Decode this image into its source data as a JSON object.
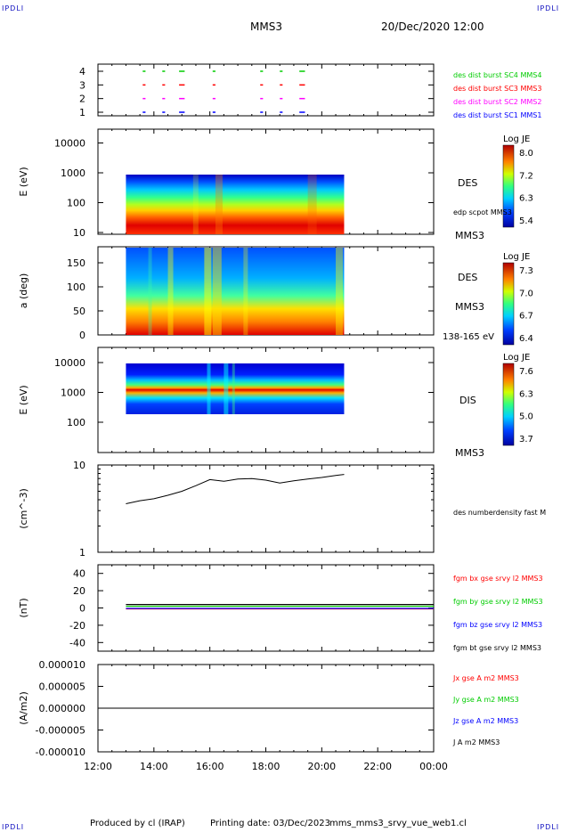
{
  "corner_label": "IPDLI",
  "header": {
    "title": "MMS3",
    "datetime": "20/Dec/2020 12:00"
  },
  "footer": {
    "produced": "Produced by cl (IRAP)",
    "printing": "Printing date: 03/Dec/2023",
    "file": "mms_mms3_srvy_vue_web1.cl"
  },
  "x_axis": {
    "ticks": [
      "12:00",
      "14:00",
      "16:00",
      "18:00",
      "20:00",
      "22:00",
      "00:00"
    ]
  },
  "colors": {
    "blue": "#0000ff",
    "magenta": "#ff00ff",
    "red": "#ff0000",
    "green": "#00cc00",
    "black": "#000000"
  },
  "chart_data": [
    {
      "type": "scatter",
      "panel": "burst-availability",
      "yticks": [
        "1",
        "2",
        "3",
        "4"
      ],
      "series": [
        {
          "name": "des dist burst SC1 MMS1",
          "color": "#0000ff",
          "y": 1
        },
        {
          "name": "des dist burst SC2 MMS2",
          "color": "#ff00ff",
          "y": 2
        },
        {
          "name": "des dist burst SC3 MMS3",
          "color": "#ff0000",
          "y": 3
        },
        {
          "name": "des dist burst SC4 MMS4",
          "color": "#00cc00",
          "y": 4
        }
      ],
      "intervals_hours": [
        [
          13.6,
          13.7
        ],
        [
          14.3,
          14.4
        ],
        [
          14.9,
          15.1
        ],
        [
          16.1,
          16.2
        ],
        [
          17.8,
          17.9
        ],
        [
          18.5,
          18.6
        ],
        [
          19.2,
          19.4
        ]
      ]
    },
    {
      "type": "heatmap",
      "panel": "des-energy",
      "ylabel": "E (eV)",
      "yticks": [
        "10",
        "100",
        "1000",
        "10000"
      ],
      "label": "DES",
      "annotation": "edp scpot MMS3",
      "spacecraft": "MMS3",
      "colorbar": {
        "title": "Log JE",
        "ticks": [
          "8.0",
          "7.2",
          "6.3",
          "5.4"
        ]
      },
      "x_range_hours": [
        13.0,
        20.8
      ]
    },
    {
      "type": "heatmap",
      "panel": "des-pitch-angle",
      "ylabel": "a (deg)",
      "yticks": [
        "0",
        "50",
        "100",
        "150"
      ],
      "label": "DES",
      "spacecraft": "MMS3",
      "energy_range": "138-165 eV",
      "colorbar": {
        "title": "Log JE",
        "ticks": [
          "7.3",
          "7.0",
          "6.7",
          "6.4"
        ]
      },
      "x_range_hours": [
        13.0,
        20.8
      ]
    },
    {
      "type": "heatmap",
      "panel": "dis-energy",
      "ylabel": "E (eV)",
      "yticks": [
        "100",
        "1000",
        "10000"
      ],
      "label": "DIS",
      "spacecraft": "MMS3",
      "colorbar": {
        "title": "Log JE",
        "ticks": [
          "7.6",
          "6.3",
          "5.0",
          "3.7"
        ]
      },
      "x_range_hours": [
        13.0,
        20.8
      ]
    },
    {
      "type": "line",
      "panel": "density",
      "ylabel": "(cm^-3)",
      "yticks": [
        "1",
        "10"
      ],
      "series_label": "des numberdensity fast M",
      "x_hours": [
        13.0,
        13.5,
        14.0,
        14.5,
        15.0,
        15.5,
        16.0,
        16.5,
        17.0,
        17.5,
        18.0,
        18.5,
        19.0,
        19.5,
        20.0,
        20.5,
        20.8
      ],
      "y": [
        3.6,
        3.9,
        4.1,
        4.5,
        5.0,
        5.8,
        6.8,
        6.5,
        6.9,
        7.0,
        6.7,
        6.2,
        6.6,
        6.9,
        7.2,
        7.6,
        7.8
      ]
    },
    {
      "type": "line",
      "panel": "magnetic-field",
      "ylabel": "(nT)",
      "yticks": [
        "-40",
        "-20",
        "0",
        "20",
        "40"
      ],
      "ylim": [
        -50,
        50
      ],
      "series": [
        {
          "name": "fgm bx gse srvy l2 MMS3",
          "color": "#ff0000",
          "level": -1
        },
        {
          "name": "fgm by gse srvy l2 MMS3",
          "color": "#00cc00",
          "level": 2
        },
        {
          "name": "fgm bz gse srvy l2 MMS3",
          "color": "#0000ff",
          "level": -0.5
        },
        {
          "name": "fgm bt gse srvy l2 MMS3",
          "color": "#000000",
          "level": 4
        }
      ]
    },
    {
      "type": "line",
      "panel": "current-density",
      "ylabel": "(A/m2)",
      "yticks": [
        "0.000010",
        "0.000005",
        "0.000000",
        "-0.000005",
        "-0.000010"
      ],
      "ylim": [
        -1e-05,
        1e-05
      ],
      "series": [
        {
          "name": "Jx gse A m2 MMS3",
          "color": "#ff0000"
        },
        {
          "name": "Jy gse A m2 MMS3",
          "color": "#00cc00"
        },
        {
          "name": "Jz gse A m2 MMS3",
          "color": "#0000ff"
        },
        {
          "name": "J A m2 MMS3",
          "color": "#000000"
        }
      ]
    }
  ]
}
